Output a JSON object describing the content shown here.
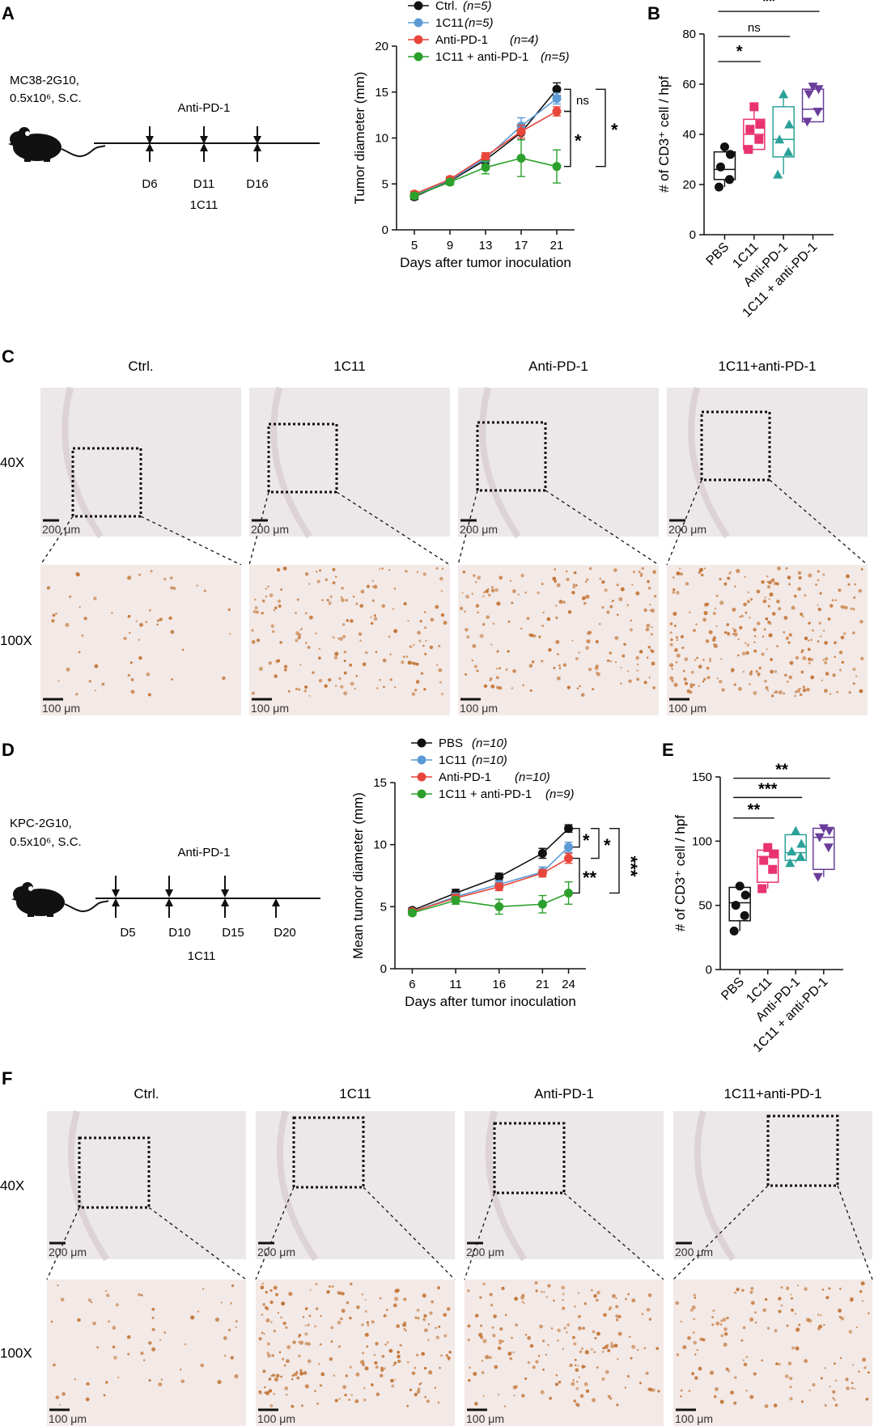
{
  "panels": {
    "A": "A",
    "B": "B",
    "C": "C",
    "D": "D",
    "E": "E",
    "F": "F"
  },
  "schematic_a": {
    "model_line1": "MC38-2G10,",
    "model_line2": "0.5x10⁶, S.C.",
    "drug": "Anti-PD-1",
    "days": [
      "D6",
      "D11",
      "D16"
    ],
    "drug2": "1C11"
  },
  "schematic_d": {
    "model_line1": "KPC-2G10,",
    "model_line2": "0.5x10⁶, S.C.",
    "drug": "Anti-PD-1",
    "days": [
      "D5",
      "D10",
      "D15",
      "D20"
    ],
    "drug2": "1C11"
  },
  "chart_data": [
    {
      "id": "A_growth",
      "type": "line",
      "ylabel": "Tumor diameter (mm)",
      "xlabel": "Days after tumor inoculation",
      "x": [
        5,
        9,
        13,
        17,
        21
      ],
      "ylim": [
        0,
        20
      ],
      "yticks": [
        0,
        5,
        10,
        15,
        20
      ],
      "series": [
        {
          "name": "Ctrl.",
          "n": "(n=5)",
          "color": "#111111",
          "values": [
            3.6,
            5.3,
            7.6,
            10.6,
            15.3
          ],
          "err": [
            0.3,
            0.3,
            0.4,
            0.8,
            0.7
          ]
        },
        {
          "name": "1C11",
          "n": "(n=5)",
          "color": "#5b9bd5",
          "values": [
            3.8,
            5.4,
            7.8,
            11.3,
            14.3
          ],
          "err": [
            0.3,
            0.3,
            0.4,
            0.9,
            0.6
          ]
        },
        {
          "name": "Anti-PD-1",
          "n": "(n=4)",
          "color": "#e8463a",
          "values": [
            3.9,
            5.5,
            8.0,
            10.7,
            12.9
          ],
          "err": [
            0.3,
            0.3,
            0.4,
            0.7,
            0.5
          ]
        },
        {
          "name": "1C11 + anti-PD-1",
          "n": "(n=5)",
          "color": "#2ca02c",
          "values": [
            3.7,
            5.2,
            6.8,
            7.8,
            6.9
          ],
          "err": [
            0.3,
            0.3,
            0.7,
            2.0,
            1.8
          ]
        }
      ],
      "annotations": [
        "ns",
        "*",
        "*"
      ]
    },
    {
      "id": "B_box",
      "type": "box",
      "ylabel": "# of CD3⁺ cell / hpf",
      "ylim": [
        0,
        80
      ],
      "yticks": [
        0,
        20,
        40,
        60,
        80
      ],
      "categories": [
        "PBS",
        "1C11",
        "Anti-PD-1",
        "1C11 + anti-PD-1"
      ],
      "colors": [
        "#111111",
        "#e8336f",
        "#2aa198",
        "#6a3d9a"
      ],
      "points": [
        [
          19,
          22,
          27,
          32,
          35
        ],
        [
          34,
          38,
          42,
          44,
          51
        ],
        [
          24,
          33,
          38,
          44,
          56
        ],
        [
          45,
          49,
          56,
          58,
          59
        ]
      ],
      "box": [
        [
          22,
          26,
          33,
          19,
          35
        ],
        [
          34,
          40,
          46,
          34,
          51
        ],
        [
          31,
          38,
          51,
          24,
          56
        ],
        [
          45,
          50,
          58,
          45,
          59
        ]
      ],
      "annotations": [
        "*",
        "ns",
        "**"
      ]
    },
    {
      "id": "D_growth",
      "type": "line",
      "ylabel": "Mean tumor diameter (mm)",
      "xlabel": "Days after tumor inoculation",
      "x": [
        6,
        11,
        16,
        21,
        24
      ],
      "ylim": [
        0,
        15
      ],
      "yticks": [
        0,
        5,
        10,
        15
      ],
      "series": [
        {
          "name": "PBS",
          "n": "(n=10)",
          "color": "#111111",
          "values": [
            4.7,
            6.1,
            7.4,
            9.3,
            11.3
          ],
          "err": [
            0.2,
            0.3,
            0.3,
            0.4,
            0.3
          ]
        },
        {
          "name": "1C11",
          "n": "(n=10)",
          "color": "#5b9bd5",
          "values": [
            4.6,
            5.8,
            6.8,
            7.8,
            9.8
          ],
          "err": [
            0.2,
            0.3,
            0.3,
            0.4,
            0.4
          ]
        },
        {
          "name": "Anti-PD-1",
          "n": "(n=10)",
          "color": "#e8463a",
          "values": [
            4.6,
            5.7,
            6.6,
            7.7,
            8.9
          ],
          "err": [
            0.2,
            0.3,
            0.3,
            0.3,
            0.4
          ]
        },
        {
          "name": "1C11 + anti-PD-1",
          "n": "(n=9)",
          "color": "#2ca02c",
          "values": [
            4.5,
            5.5,
            5.0,
            5.2,
            6.1
          ],
          "err": [
            0.2,
            0.3,
            0.6,
            0.7,
            0.9
          ]
        }
      ],
      "annotations": [
        "*",
        "**",
        "*",
        "***"
      ]
    },
    {
      "id": "E_box",
      "type": "box",
      "ylabel": "# of CD3⁺ cell / hpf",
      "ylim": [
        0,
        150
      ],
      "yticks": [
        0,
        50,
        100,
        150
      ],
      "categories": [
        "PBS",
        "1C11",
        "Anti-PD-1",
        "1C11 + anti-PD-1"
      ],
      "colors": [
        "#111111",
        "#e8336f",
        "#2aa198",
        "#6a3d9a"
      ],
      "points": [
        [
          30,
          42,
          50,
          58,
          65
        ],
        [
          63,
          78,
          85,
          90,
          95
        ],
        [
          83,
          88,
          92,
          98,
          108
        ],
        [
          72,
          95,
          103,
          108,
          110
        ]
      ],
      "box": [
        [
          38,
          52,
          64,
          30,
          65
        ],
        [
          68,
          88,
          93,
          63,
          95
        ],
        [
          85,
          91,
          105,
          83,
          108
        ],
        [
          78,
          103,
          110,
          72,
          110
        ]
      ],
      "annotations": [
        "**",
        "***",
        "**"
      ]
    }
  ],
  "micrographs_c": {
    "columns": [
      "Ctrl.",
      "1C11",
      "Anti-PD-1",
      "1C11+anti-PD-1"
    ],
    "row_labels": [
      "40X",
      "100X"
    ],
    "scale_top": "200 μm",
    "scale_bottom": "100 μm"
  },
  "micrographs_f": {
    "columns": [
      "Ctrl.",
      "1C11",
      "Anti-PD-1",
      "1C11+anti-PD-1"
    ],
    "row_labels": [
      "40X",
      "100X"
    ],
    "scale_top": "200 μm",
    "scale_bottom": "100 μm"
  },
  "colors": {
    "tissue_bg": "#ece7e9",
    "tissue_zoom_bg": "#f3e9e6",
    "stain": "#c0702f"
  }
}
